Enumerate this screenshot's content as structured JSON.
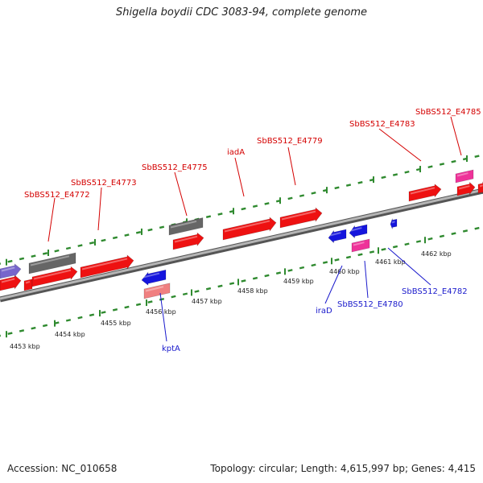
{
  "title": "Shigella boydii CDC 3083-94, complete genome",
  "footer": {
    "accession": "Accession: NC_010658",
    "summary": "Topology: circular; Length: 4,615,997 bp; Genes: 4,415"
  },
  "colors": {
    "backbone": "#9a9a9a",
    "tick": "#2f8a2f",
    "forward_label": "#d40000",
    "reverse_label": "#1a1acc",
    "cds_red": "#ee1111",
    "cds_gray": "#666666",
    "cds_blue": "#1515dd",
    "cds_pink": "#ee3399",
    "cds_lightred": "#f08080",
    "cds_purple": "#7766cc"
  },
  "scale_labels": [
    "4453 kbp",
    "4454 kbp",
    "4455 kbp",
    "4456 kbp",
    "4457 kbp",
    "4458 kbp",
    "4459 kbp",
    "4460 kbp",
    "4461 kbp",
    "4462 kbp"
  ],
  "gene_labels_forward": [
    "SbBS512_E4772",
    "SbBS512_E4773",
    "SbBS512_E4775",
    "iadA",
    "SbBS512_E4779",
    "SbBS512_E4783",
    "SbBS512_E4785"
  ],
  "gene_labels_reverse": [
    "kptA",
    "iraD",
    "SbBS512_E4780",
    "SbBS512_E4782"
  ]
}
